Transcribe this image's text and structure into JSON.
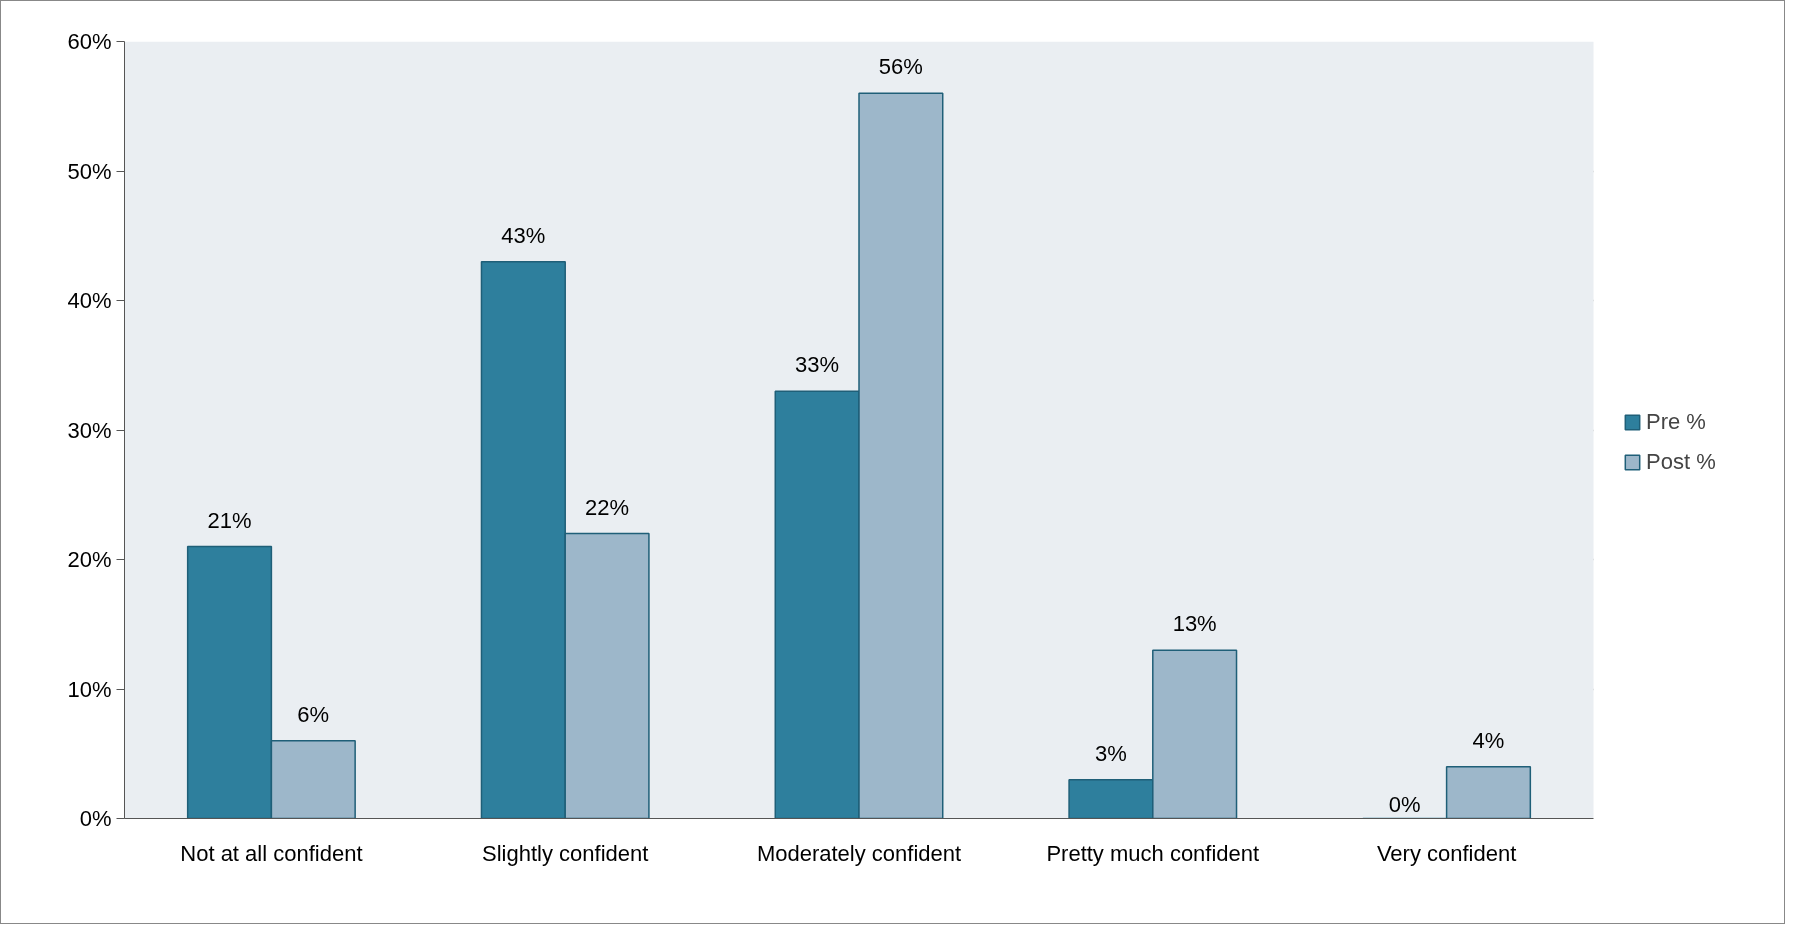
{
  "chart_data": {
    "type": "bar",
    "categories": [
      "Not at all confident",
      "Slightly confident",
      "Moderately confident",
      "Pretty much confident",
      "Very confident"
    ],
    "series": [
      {
        "name": "Pre %",
        "color": "#2e7f9d",
        "values": [
          21,
          43,
          33,
          3,
          0
        ],
        "value_labels": [
          "21%",
          "43%",
          "33%",
          "3%",
          "0%"
        ]
      },
      {
        "name": "Post %",
        "color": "#9db7ca",
        "values": [
          6,
          22,
          56,
          13,
          4
        ],
        "value_labels": [
          "6%",
          "22%",
          "56%",
          "13%",
          "4%"
        ]
      }
    ],
    "ylim": [
      0,
      60
    ],
    "yticks": [
      {
        "value": 0,
        "label": "0%"
      },
      {
        "value": 10,
        "label": "10%"
      },
      {
        "value": 20,
        "label": "20%"
      },
      {
        "value": 30,
        "label": "30%"
      },
      {
        "value": 40,
        "label": "40%"
      },
      {
        "value": 50,
        "label": "50%"
      },
      {
        "value": 60,
        "label": "60%"
      }
    ],
    "grid": "y",
    "legend": "right"
  }
}
